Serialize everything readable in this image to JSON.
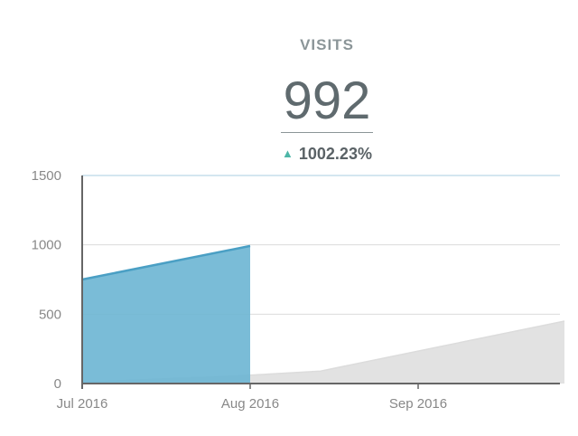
{
  "kpi": {
    "label": "VISITS",
    "value": "992",
    "change": "1002.23%",
    "change_direction": "up",
    "arrow_color": "#4db6a7"
  },
  "chart_data": {
    "type": "area",
    "x_tick_labels": [
      "Jul 2016",
      "Aug 2016",
      "Sep 2016"
    ],
    "y_tick_labels": [
      "0",
      "500",
      "1000",
      "1500"
    ],
    "ylim": [
      0,
      1500
    ],
    "xlim": [
      "2016-07-01",
      "2016-09-30"
    ],
    "grid": true,
    "series": [
      {
        "color": "#5aaed0",
        "fill": "#6bb5d3",
        "x": [
          "2016-07-01",
          "2016-08-01"
        ],
        "values": [
          750,
          992
        ]
      },
      {
        "color": "#dcdcdc",
        "fill": "#e0e0e0",
        "x": [
          "2016-07-01",
          "2016-08-01",
          "2016-08-14",
          "2016-09-28"
        ],
        "values": [
          10,
          60,
          90,
          450
        ]
      }
    ]
  }
}
